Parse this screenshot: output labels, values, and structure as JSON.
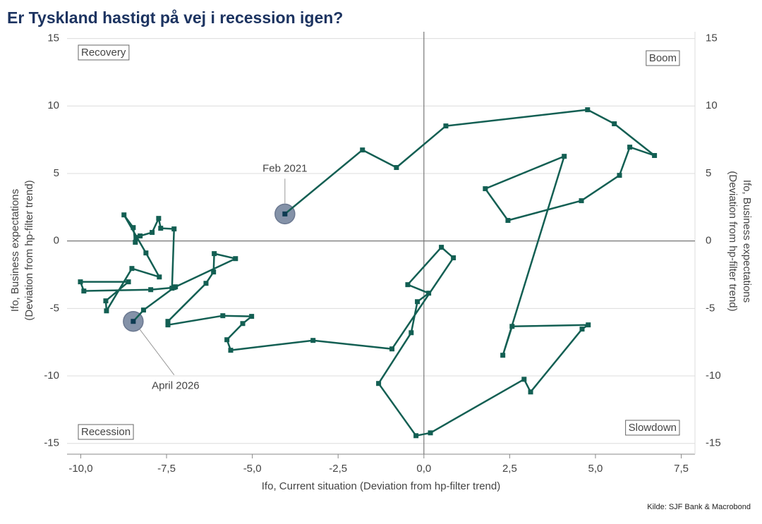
{
  "chart_data": {
    "type": "scatter",
    "title": "Er Tyskland hastigt på vej i recession igen?",
    "x_label": "Ifo, Current situation (Deviation from hp-filter trend)",
    "y_label": [
      "Ifo, Business expectations",
      "(Deviation from hp-filter trend)"
    ],
    "y2_label": [
      "Ifo, Business expectations",
      "(Deviation from hp-filter trend)"
    ],
    "source": "Kilde: SJF Bank & Macrobond",
    "quadrant_labels": [
      "Recovery",
      "Boom",
      "Recession",
      "Slowdown"
    ],
    "start_label": "Feb 2021",
    "end_label": "April 2026",
    "series": [
      {
        "color": "#135f53",
        "x": [
          -4.05,
          -1.79,
          -0.8,
          0.64,
          4.77,
          5.55,
          6.72,
          6.0,
          5.7,
          4.59,
          2.45,
          1.79,
          4.09,
          2.3,
          2.57,
          4.79,
          4.61,
          3.11,
          2.92,
          0.19,
          -0.23,
          -1.32,
          -0.37,
          -0.19,
          0.14,
          -0.47,
          0.51,
          0.86,
          -0.93,
          -3.23,
          -5.63,
          -5.74,
          -5.28,
          -5.02,
          -5.86,
          -7.46,
          -7.46,
          -6.35,
          -6.13,
          -6.11,
          -5.49,
          -7.24,
          -7.34,
          -7.28,
          -7.67,
          -7.73,
          -7.92,
          -8.27,
          -8.39,
          -8.41,
          -8.47,
          -8.74,
          -8.1,
          -7.71,
          -8.51,
          -9.25,
          -9.27,
          -8.61,
          -10.01,
          -9.91,
          -7.96,
          -7.28,
          -8.17,
          -8.47
        ],
        "values": [
          2.0,
          6.74,
          5.44,
          8.52,
          9.72,
          8.68,
          6.33,
          6.95,
          4.86,
          2.98,
          1.52,
          3.87,
          6.27,
          -8.47,
          -6.33,
          -6.22,
          -6.53,
          -11.19,
          -10.25,
          -14.22,
          -14.43,
          -10.56,
          -6.8,
          -4.5,
          -3.87,
          -3.24,
          -0.47,
          -1.25,
          -8.0,
          -7.37,
          -8.1,
          -7.32,
          -6.12,
          -5.59,
          -5.54,
          -6.22,
          -5.96,
          -3.14,
          -2.3,
          -0.94,
          -1.31,
          -3.4,
          -3.5,
          0.89,
          0.94,
          1.67,
          0.63,
          0.37,
          0.26,
          -0.1,
          0.99,
          1.93,
          -0.89,
          -2.67,
          -2.04,
          -5.18,
          -4.44,
          -3.03,
          -3.03,
          -3.71,
          -3.61,
          -3.45,
          -5.12,
          -5.96
        ]
      }
    ],
    "xlim": [
      -10.4,
      7.9
    ],
    "ylim": [
      -15.8,
      15.5
    ],
    "y2lim": [
      -15.8,
      15.5
    ],
    "xticks": [
      {
        "value": -10,
        "label": "-10,0"
      },
      {
        "value": -7.5,
        "label": "-7,5"
      },
      {
        "value": -5,
        "label": "-5,0"
      },
      {
        "value": -2.5,
        "label": "-2,5"
      },
      {
        "value": 0,
        "label": "0,0"
      },
      {
        "value": 2.5,
        "label": "2,5"
      },
      {
        "value": 5,
        "label": "5,0"
      },
      {
        "value": 7.5,
        "label": "7,5"
      }
    ],
    "yticks": [
      -15,
      -10,
      -5,
      0,
      5,
      10,
      15
    ],
    "y2ticks": [
      -15,
      -10,
      -5,
      0,
      5,
      10,
      15
    ],
    "grid": true
  }
}
